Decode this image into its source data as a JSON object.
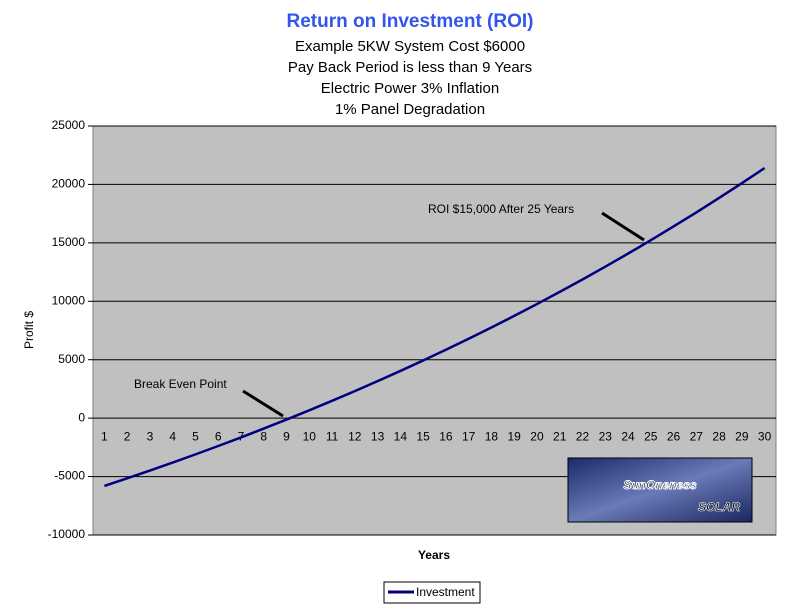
{
  "chart_data": {
    "type": "line",
    "title": "Return on Investment (ROI)",
    "subtitle": [
      "Example 5KW System Cost $6000",
      "Pay Back Period is less than 9 Years",
      "Electric Power 3% Inflation",
      "1% Panel Degradation"
    ],
    "x_label": "Years",
    "y_label": "Profit $",
    "categories": [
      1,
      2,
      3,
      4,
      5,
      6,
      7,
      8,
      9,
      10,
      11,
      12,
      13,
      14,
      15,
      16,
      17,
      18,
      19,
      20,
      21,
      22,
      23,
      24,
      25,
      26,
      27,
      28,
      29,
      30
    ],
    "series": [
      {
        "name": "Investment",
        "color": "#000080",
        "values": [
          -5800,
          -5150,
          -4484,
          -3801,
          -3101,
          -2384,
          -1649,
          -895,
          -123,
          669,
          1481,
          2313,
          3166,
          4040,
          4936,
          5854,
          6795,
          7760,
          8749,
          9763,
          10802,
          11867,
          12959,
          14078,
          15225,
          16401,
          17606,
          18841,
          20107,
          21405
        ]
      }
    ],
    "ylim": [
      -10000,
      25000
    ],
    "yticks": [
      -10000,
      -5000,
      0,
      5000,
      10000,
      15000,
      20000,
      25000
    ],
    "grid": true,
    "legend": "bottom",
    "annotations": [
      {
        "text": "ROI $15,000 After 25 Years"
      },
      {
        "text": "Break Even Point"
      }
    ],
    "logo": {
      "name": "SunOneness",
      "sub": "SOLAR"
    }
  }
}
